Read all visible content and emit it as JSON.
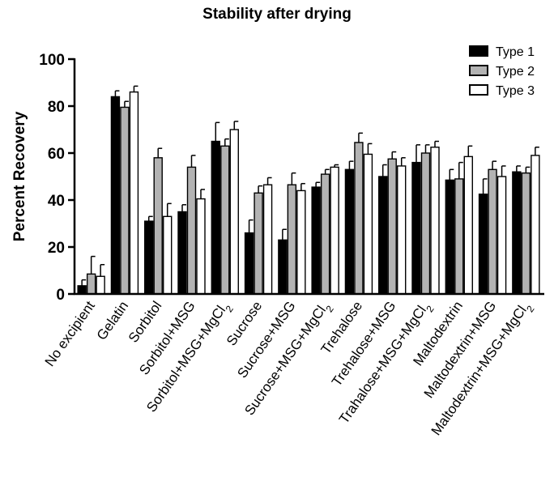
{
  "chart_data": {
    "type": "bar",
    "title": "Stability after drying",
    "xlabel": "",
    "ylabel": "Percent Recovery",
    "ylim": [
      0,
      100
    ],
    "yticks": [
      "0",
      "20",
      "40",
      "60",
      "80",
      "100"
    ],
    "legend_position": "top-right",
    "grid": false,
    "categories": [
      "No excipient",
      "Gelatin",
      "Sorbitol",
      "Sorbitol+MSG",
      "Sorbitol+MSG+MgCl2",
      "Sucrose",
      "Sucrose+MSG",
      "Sucrose+MSG+MgCl2",
      "Trehalose",
      "Trehalose+MSG",
      "Trahalose+MSG+MgCl2",
      "Maltodextrin",
      "Maltodextrin+MSG",
      "Maltodextrin+MSG+MgCl2"
    ],
    "series": [
      {
        "name": "Type 1",
        "color": "#000000",
        "values": [
          3.5,
          84,
          31,
          35,
          65,
          26,
          23,
          45.5,
          53,
          50,
          56,
          48.5,
          42.5,
          52
        ],
        "errors": [
          2.5,
          2.5,
          2,
          3,
          8,
          5.5,
          4.5,
          2,
          3.5,
          5,
          7.5,
          4.5,
          6.5,
          2.5
        ]
      },
      {
        "name": "Type 2",
        "color": "#b3b3b3",
        "values": [
          8.5,
          79.5,
          58,
          54,
          63,
          43,
          46.5,
          51,
          64.5,
          57.5,
          60,
          49,
          53,
          51.5
        ],
        "errors": [
          7.5,
          2.5,
          4,
          5,
          3,
          3,
          5,
          2,
          4,
          3,
          3.5,
          7,
          3.5,
          2.5
        ]
      },
      {
        "name": "Type 3",
        "color": "#ffffff",
        "values": [
          7.5,
          86,
          33,
          40.5,
          70,
          46.5,
          44,
          54,
          59.5,
          54.5,
          62.5,
          58.5,
          50,
          59
        ],
        "errors": [
          5,
          2.5,
          5.5,
          4,
          3.5,
          3,
          3,
          1,
          4.5,
          3.5,
          2.5,
          4.5,
          4.5,
          3.5
        ]
      }
    ]
  }
}
